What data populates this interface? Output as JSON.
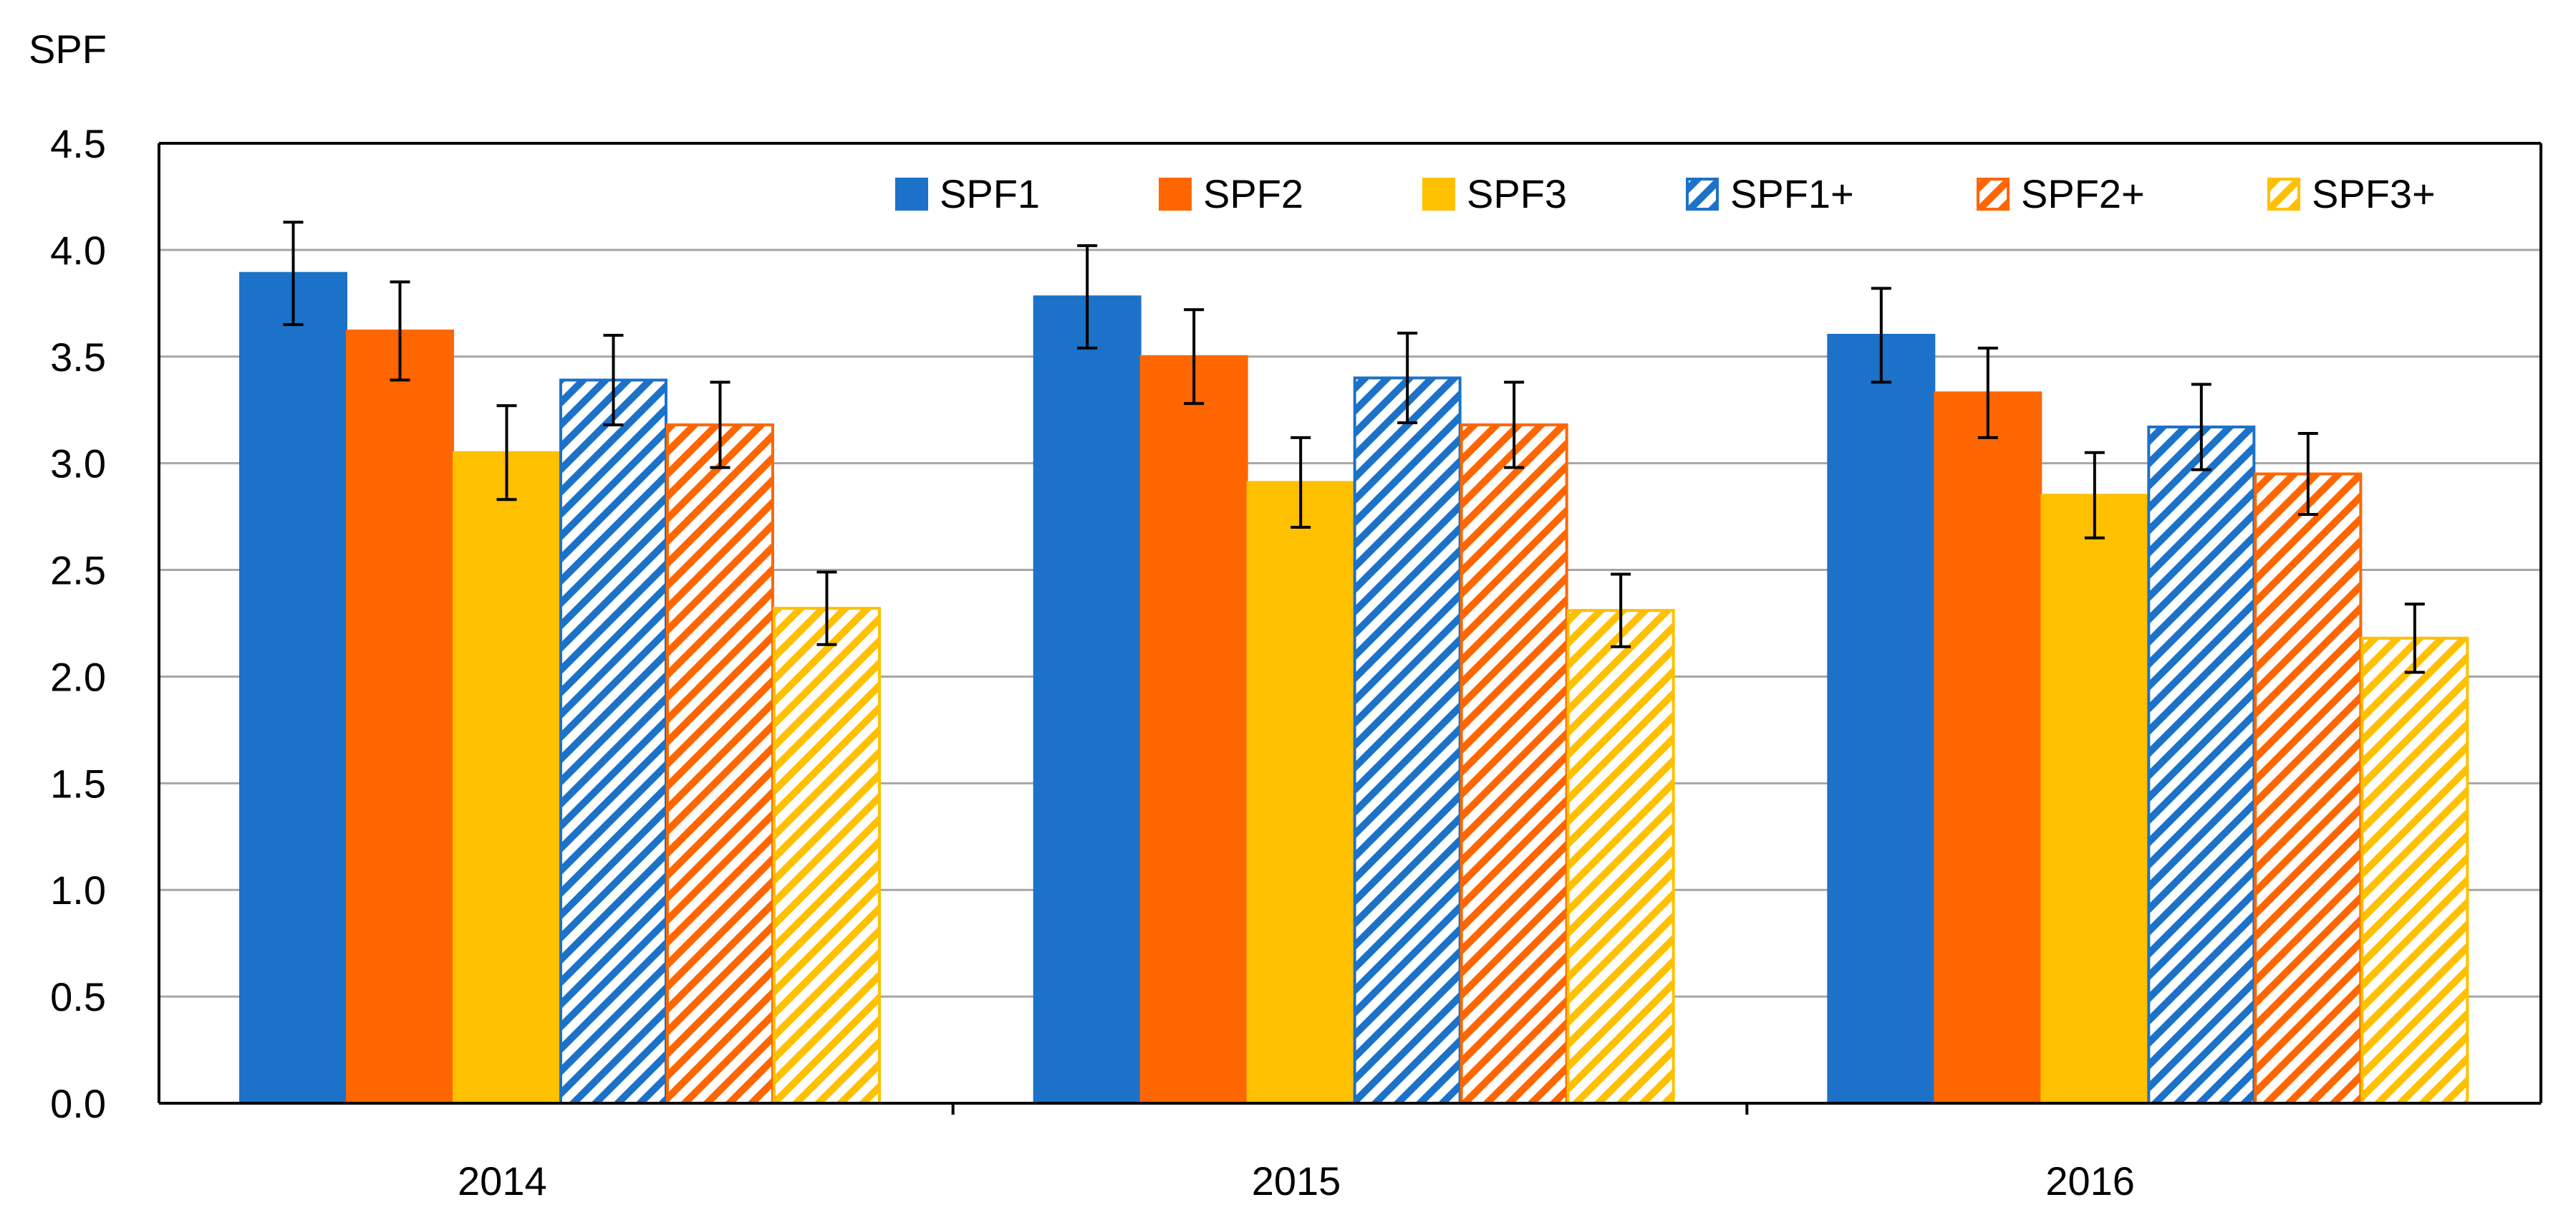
{
  "chart_data": {
    "type": "bar",
    "title": "",
    "ylabel": "SPF",
    "xlabel": "",
    "ylim": [
      0,
      4.5
    ],
    "ytick_step": 0.5,
    "categories": [
      "2014",
      "2015",
      "2016"
    ],
    "grid": "horizontal",
    "legend_position": "top-right",
    "series": [
      {
        "name": "SPF1",
        "color": "#1B72C8",
        "pattern": "solid",
        "values": [
          3.89,
          3.78,
          3.6
        ],
        "errors": [
          0.24,
          0.24,
          0.22
        ]
      },
      {
        "name": "SPF2",
        "color": "#FF6600",
        "pattern": "solid",
        "values": [
          3.62,
          3.5,
          3.33
        ],
        "errors": [
          0.23,
          0.22,
          0.21
        ]
      },
      {
        "name": "SPF3",
        "color": "#FFC000",
        "pattern": "solid",
        "values": [
          3.05,
          2.91,
          2.85
        ],
        "errors": [
          0.22,
          0.21,
          0.2
        ]
      },
      {
        "name": "SPF1+",
        "color": "#1B72C8",
        "pattern": "hatched",
        "values": [
          3.39,
          3.4,
          3.17
        ],
        "errors": [
          0.21,
          0.21,
          0.2
        ]
      },
      {
        "name": "SPF2+",
        "color": "#FF6600",
        "pattern": "hatched",
        "values": [
          3.18,
          3.18,
          2.95
        ],
        "errors": [
          0.2,
          0.2,
          0.19
        ]
      },
      {
        "name": "SPF3+",
        "color": "#FFC000",
        "pattern": "hatched",
        "values": [
          2.32,
          2.31,
          2.18
        ],
        "errors": [
          0.17,
          0.17,
          0.16
        ]
      }
    ]
  }
}
